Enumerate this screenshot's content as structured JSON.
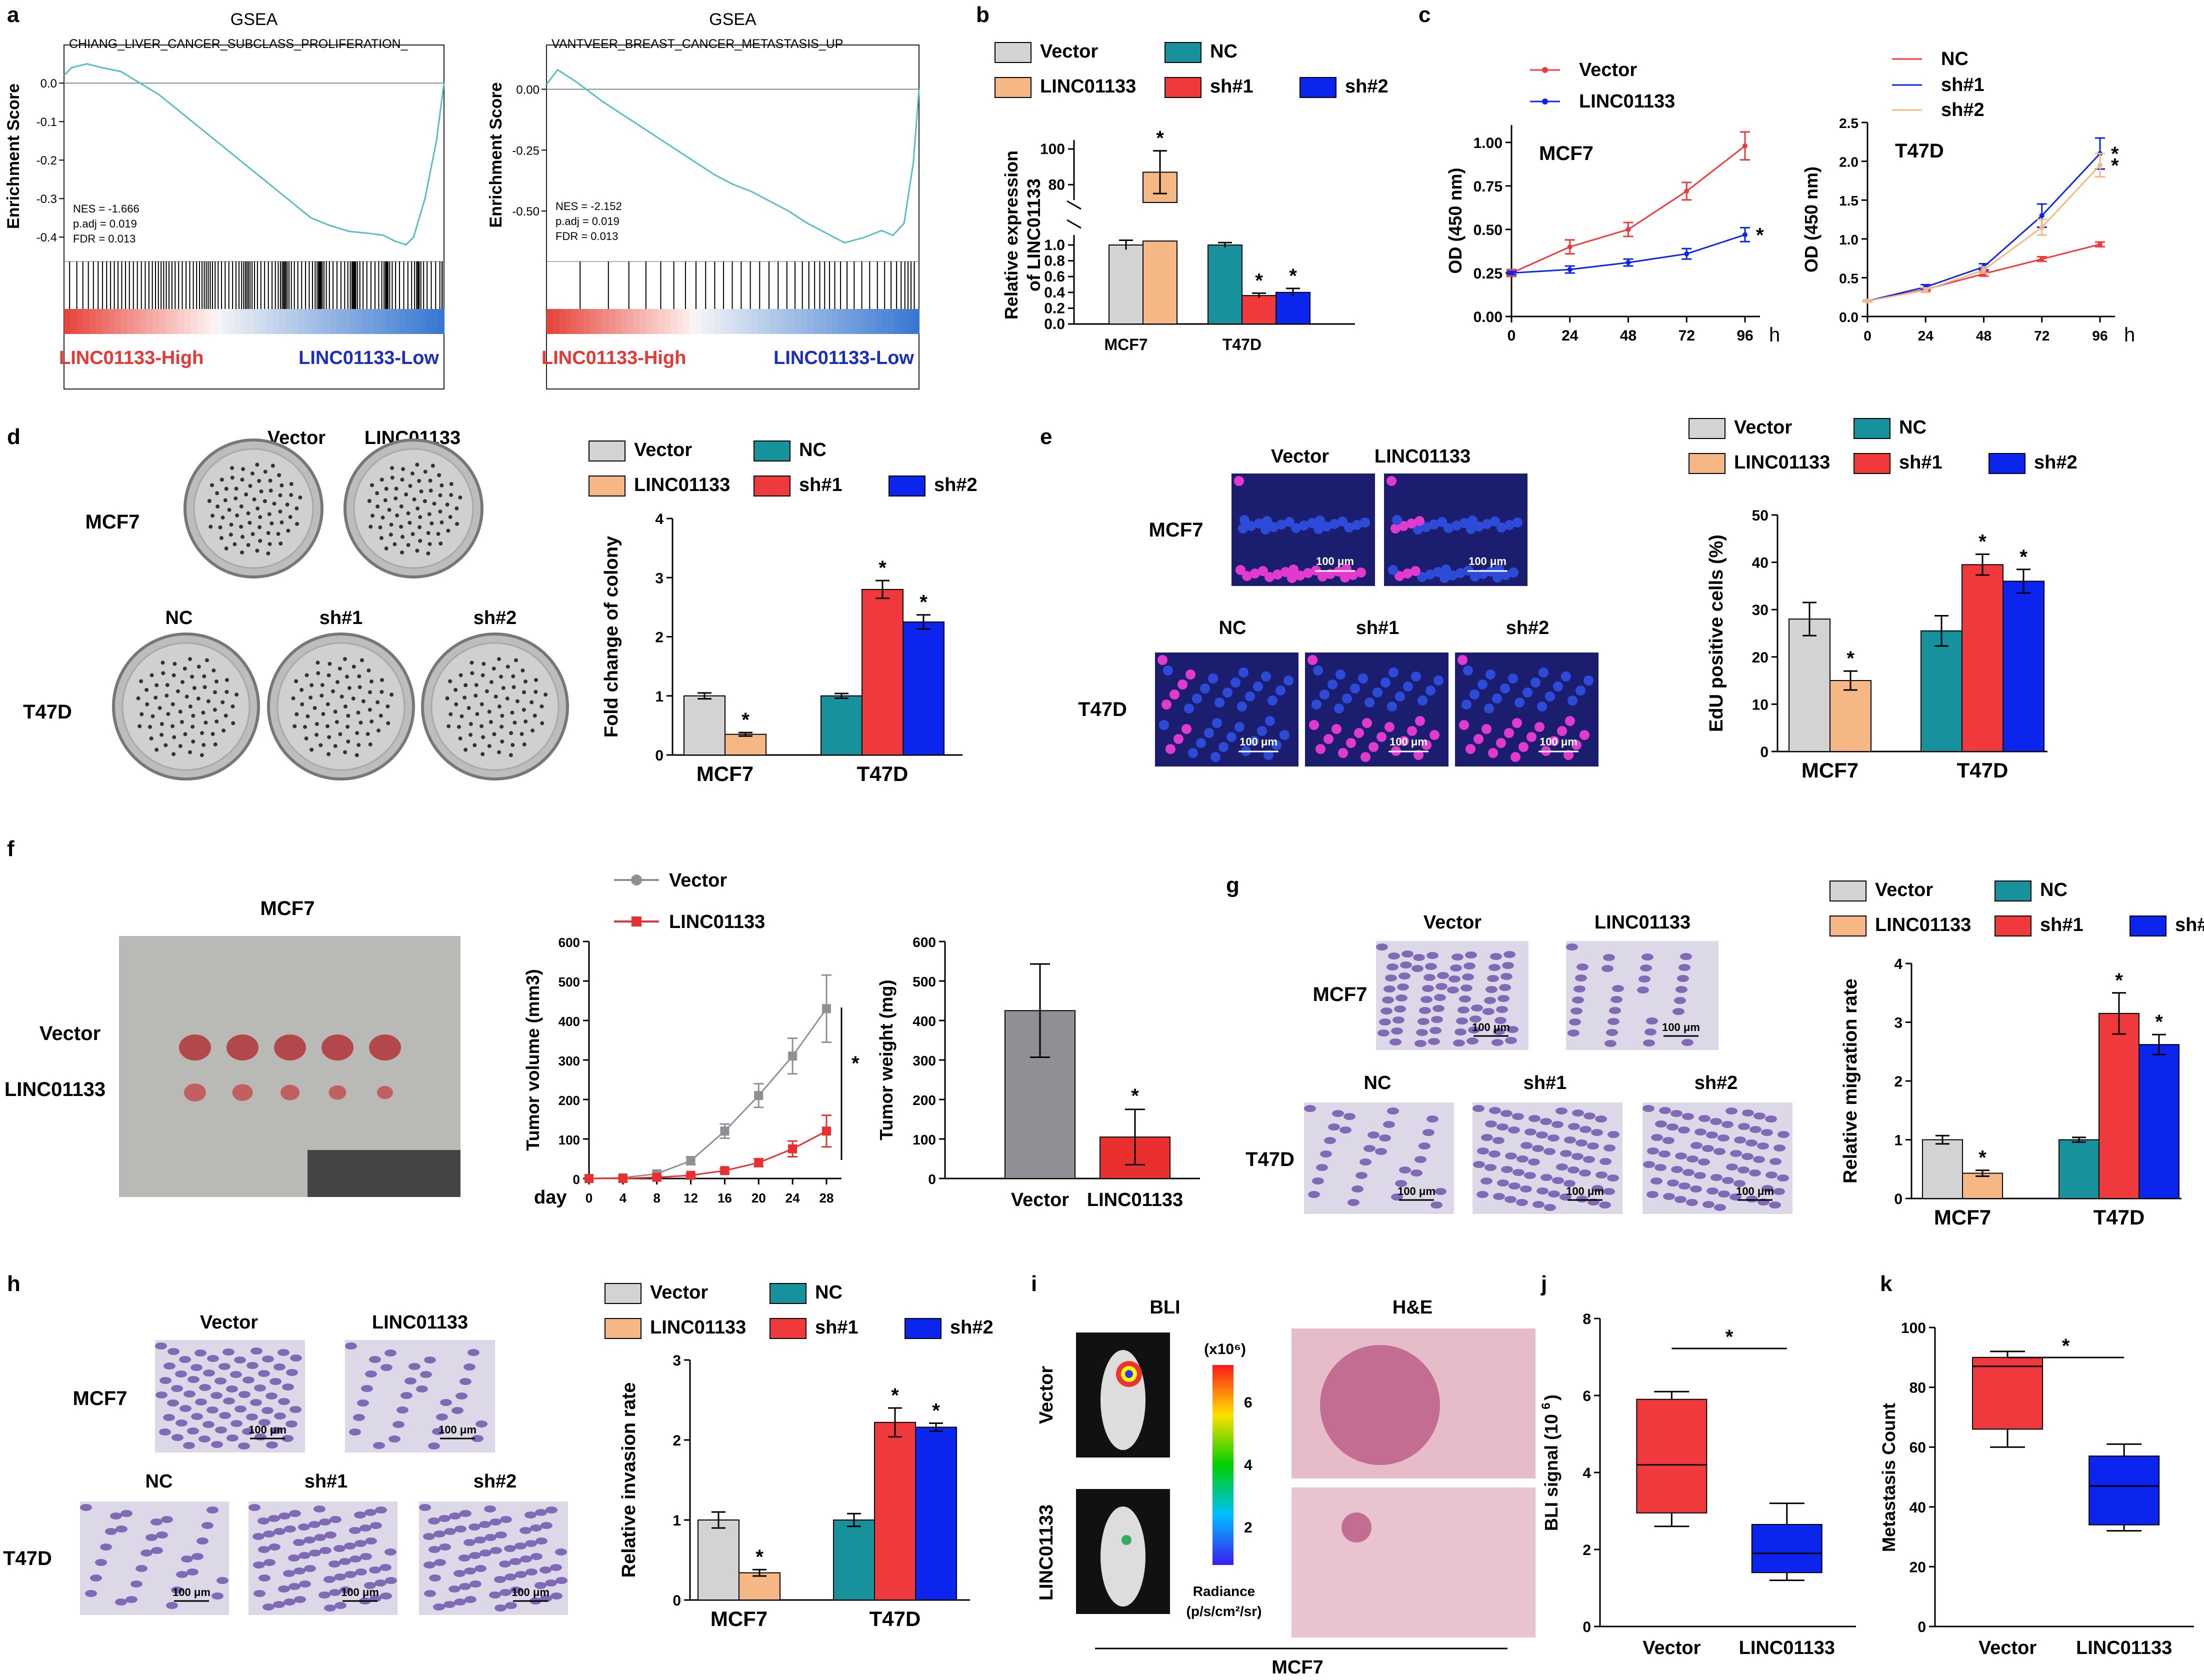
{
  "colors": {
    "gray": "#d3d3d3",
    "teal": "#17919c",
    "orange": "#f5b884",
    "red": "#f0393c",
    "blue": "#0b24ee",
    "gsea_line": "#56bfc6",
    "high_red": "#e53935",
    "low_blue": "#1a2fbf",
    "tumor_gray": "#8f8f95",
    "tumor_red": "#ea2f2f"
  },
  "legend_labels": {
    "vector": "Vector",
    "linc": "LINC01133",
    "nc": "NC",
    "sh1": "sh#1",
    "sh2": "sh#2"
  },
  "panels": {
    "a": "a",
    "b": "b",
    "c": "c",
    "d": "d",
    "e": "e",
    "f": "f",
    "g": "g",
    "h": "h",
    "i": "i",
    "j": "j",
    "k": "k"
  },
  "chart_data": [
    {
      "id": "a1",
      "type": "line",
      "title": "GSEA",
      "subtitle": "CHIANG_LIVER_CANCER_SUBCLASS_PROLIFERATION_",
      "ylabel": "Enrichment Score",
      "yticks": [
        "0.0",
        "-0.1",
        "-0.2",
        "-0.3",
        "-0.4"
      ],
      "ylim": [
        -0.44,
        0.06
      ],
      "curve": [
        [
          0,
          0.02
        ],
        [
          0.02,
          0.04
        ],
        [
          0.06,
          0.05
        ],
        [
          0.1,
          0.04
        ],
        [
          0.15,
          0.03
        ],
        [
          0.2,
          0.0
        ],
        [
          0.25,
          -0.03
        ],
        [
          0.3,
          -0.07
        ],
        [
          0.35,
          -0.11
        ],
        [
          0.4,
          -0.15
        ],
        [
          0.45,
          -0.19
        ],
        [
          0.5,
          -0.23
        ],
        [
          0.55,
          -0.27
        ],
        [
          0.6,
          -0.31
        ],
        [
          0.65,
          -0.35
        ],
        [
          0.7,
          -0.37
        ],
        [
          0.75,
          -0.385
        ],
        [
          0.8,
          -0.39
        ],
        [
          0.84,
          -0.395
        ],
        [
          0.87,
          -0.41
        ],
        [
          0.9,
          -0.42
        ],
        [
          0.92,
          -0.4
        ],
        [
          0.95,
          -0.3
        ],
        [
          0.98,
          -0.15
        ],
        [
          1.0,
          0.0
        ]
      ],
      "stats": [
        "NES = -1.666",
        "p.adj = 0.019",
        "FDR = 0.013"
      ],
      "high_label": "LINC01133-High",
      "low_label": "LINC01133-Low"
    },
    {
      "id": "a2",
      "type": "line",
      "title": "GSEA",
      "subtitle": "VANTVEER_BREAST_CANCER_METASTASIS_UP",
      "ylabel": "Enrichment Score",
      "yticks": [
        "0.00",
        "-0.25",
        "-0.50"
      ],
      "ylim": [
        -0.66,
        0.12
      ],
      "curve": [
        [
          0,
          0.02
        ],
        [
          0.03,
          0.08
        ],
        [
          0.08,
          0.03
        ],
        [
          0.15,
          -0.05
        ],
        [
          0.2,
          -0.1
        ],
        [
          0.25,
          -0.15
        ],
        [
          0.3,
          -0.2
        ],
        [
          0.35,
          -0.25
        ],
        [
          0.4,
          -0.3
        ],
        [
          0.45,
          -0.35
        ],
        [
          0.5,
          -0.39
        ],
        [
          0.55,
          -0.42
        ],
        [
          0.6,
          -0.46
        ],
        [
          0.65,
          -0.5
        ],
        [
          0.7,
          -0.55
        ],
        [
          0.75,
          -0.59
        ],
        [
          0.8,
          -0.63
        ],
        [
          0.85,
          -0.61
        ],
        [
          0.9,
          -0.58
        ],
        [
          0.93,
          -0.6
        ],
        [
          0.96,
          -0.55
        ],
        [
          0.985,
          -0.3
        ],
        [
          1.0,
          0.0
        ]
      ],
      "stats": [
        "NES = -2.152",
        "p.adj = 0.019",
        "FDR = 0.013"
      ],
      "high_label": "LINC01133-High",
      "low_label": "LINC01133-Low"
    },
    {
      "id": "b",
      "type": "bar",
      "ylabel": "Relative expression of LINC01133",
      "categories": [
        "MCF7",
        "T47D"
      ],
      "bars": [
        {
          "cat": "MCF7",
          "series": "Vector",
          "value": 1.0,
          "err": 0.06
        },
        {
          "cat": "MCF7",
          "series": "LINC01133",
          "value": 87,
          "err": 12,
          "star": true
        },
        {
          "cat": "T47D",
          "series": "NC",
          "value": 1.0,
          "err": 0.03
        },
        {
          "cat": "T47D",
          "series": "sh#1",
          "value": 0.36,
          "err": 0.03,
          "star": true
        },
        {
          "cat": "T47D",
          "series": "sh#2",
          "value": 0.4,
          "err": 0.05,
          "star": true
        }
      ],
      "yticks_low": [
        "0.0",
        "0.2",
        "0.4",
        "0.6",
        "0.8",
        "1.0"
      ],
      "yticks_high": [
        "80",
        "100"
      ]
    },
    {
      "id": "c1",
      "type": "line",
      "title": "MCF7",
      "ylabel": "OD (450 nm)",
      "x": [
        0,
        24,
        48,
        72,
        96
      ],
      "xunit": "h",
      "ylim": [
        0,
        1.1
      ],
      "yticks": [
        "0.00",
        "0.25",
        "0.50",
        "0.75",
        "1.00"
      ],
      "series": [
        {
          "name": "Vector",
          "values": [
            0.25,
            0.4,
            0.5,
            0.72,
            0.98
          ],
          "err": [
            0.02,
            0.04,
            0.04,
            0.05,
            0.08
          ]
        },
        {
          "name": "LINC01133",
          "values": [
            0.25,
            0.27,
            0.31,
            0.36,
            0.47
          ],
          "err": [
            0.01,
            0.02,
            0.02,
            0.03,
            0.04
          ],
          "star": true
        }
      ]
    },
    {
      "id": "c2",
      "type": "line",
      "title": "T47D",
      "ylabel": "OD (450 nm)",
      "x": [
        0,
        24,
        48,
        72,
        96
      ],
      "xunit": "h",
      "ylim": [
        0,
        2.5
      ],
      "yticks": [
        "0.0",
        "0.5",
        "1.0",
        "1.5",
        "2.0",
        "2.5"
      ],
      "series": [
        {
          "name": "NC",
          "values": [
            0.2,
            0.35,
            0.55,
            0.74,
            0.93
          ],
          "err": [
            0.01,
            0.02,
            0.03,
            0.03,
            0.03
          ]
        },
        {
          "name": "sh#1",
          "values": [
            0.2,
            0.38,
            0.64,
            1.3,
            2.1
          ],
          "err": [
            0.01,
            0.03,
            0.04,
            0.15,
            0.2
          ],
          "star": true
        },
        {
          "name": "sh#2",
          "values": [
            0.2,
            0.34,
            0.6,
            1.15,
            1.95
          ],
          "err": [
            0.01,
            0.03,
            0.04,
            0.1,
            0.15
          ],
          "star": true
        }
      ]
    },
    {
      "id": "d",
      "type": "bar",
      "ylabel": "Fold change of colony",
      "categories": [
        "MCF7",
        "T47D"
      ],
      "ylim": [
        0,
        4
      ],
      "yticks": [
        "0",
        "1",
        "2",
        "3",
        "4"
      ],
      "bars": [
        {
          "cat": "MCF7",
          "series": "Vector",
          "value": 1.0,
          "err": 0.05
        },
        {
          "cat": "MCF7",
          "series": "LINC01133",
          "value": 0.35,
          "err": 0.03,
          "star": true
        },
        {
          "cat": "T47D",
          "series": "NC",
          "value": 1.0,
          "err": 0.04
        },
        {
          "cat": "T47D",
          "series": "sh#1",
          "value": 2.8,
          "err": 0.15,
          "star": true
        },
        {
          "cat": "T47D",
          "series": "sh#2",
          "value": 2.25,
          "err": 0.12,
          "star": true
        }
      ]
    },
    {
      "id": "e",
      "type": "bar",
      "ylabel": "EdU positive cells (%)",
      "categories": [
        "MCF7",
        "T47D"
      ],
      "ylim": [
        0,
        50
      ],
      "yticks": [
        "0",
        "10",
        "20",
        "30",
        "40",
        "50"
      ],
      "bars": [
        {
          "cat": "MCF7",
          "series": "Vector",
          "value": 28,
          "err": 3.5
        },
        {
          "cat": "MCF7",
          "series": "LINC01133",
          "value": 15,
          "err": 2,
          "star": true
        },
        {
          "cat": "T47D",
          "series": "NC",
          "value": 25.5,
          "err": 3.2
        },
        {
          "cat": "T47D",
          "series": "sh#1",
          "value": 39.5,
          "err": 2.2,
          "star": true
        },
        {
          "cat": "T47D",
          "series": "sh#2",
          "value": 36,
          "err": 2.5,
          "star": true
        }
      ]
    },
    {
      "id": "f1",
      "type": "line",
      "ylabel": "Tumor volume (mm3)",
      "xlabel": "day",
      "x": [
        0,
        4,
        8,
        12,
        16,
        20,
        24,
        28
      ],
      "ylim": [
        0,
        600
      ],
      "yticks": [
        "0",
        "100",
        "200",
        "300",
        "400",
        "500",
        "600"
      ],
      "series": [
        {
          "name": "Vector",
          "values": [
            0,
            2,
            12,
            45,
            120,
            210,
            310,
            430
          ],
          "err": [
            0,
            1,
            5,
            10,
            18,
            30,
            45,
            85
          ]
        },
        {
          "name": "LINC01133",
          "values": [
            0,
            0,
            3,
            8,
            20,
            40,
            75,
            120
          ],
          "err": [
            0,
            0,
            2,
            3,
            5,
            10,
            20,
            40
          ]
        }
      ]
    },
    {
      "id": "f2",
      "type": "bar",
      "ylabel": "Tumor weight (mg)",
      "categories": [
        "Vector",
        "LINC01133"
      ],
      "ylim": [
        0,
        600
      ],
      "yticks": [
        "0",
        "100",
        "200",
        "300",
        "400",
        "500",
        "600"
      ],
      "bars": [
        {
          "cat": "Vector",
          "series": "Vector",
          "value": 425,
          "err": 118
        },
        {
          "cat": "LINC01133",
          "series": "LINC01133",
          "value": 105,
          "err": 70,
          "star": true
        }
      ]
    },
    {
      "id": "g",
      "type": "bar",
      "ylabel": "Relative migration rate",
      "categories": [
        "MCF7",
        "T47D"
      ],
      "ylim": [
        0,
        4
      ],
      "yticks": [
        "0",
        "1",
        "2",
        "3",
        "4"
      ],
      "bars": [
        {
          "cat": "MCF7",
          "series": "Vector",
          "value": 1.0,
          "err": 0.07
        },
        {
          "cat": "MCF7",
          "series": "LINC01133",
          "value": 0.43,
          "err": 0.05,
          "star": true
        },
        {
          "cat": "T47D",
          "series": "NC",
          "value": 1.0,
          "err": 0.04
        },
        {
          "cat": "T47D",
          "series": "sh#1",
          "value": 3.15,
          "err": 0.35,
          "star": true
        },
        {
          "cat": "T47D",
          "series": "sh#2",
          "value": 2.62,
          "err": 0.17,
          "star": true
        }
      ]
    },
    {
      "id": "h",
      "type": "bar",
      "ylabel": "Relative invasion rate",
      "categories": [
        "MCF7",
        "T47D"
      ],
      "ylim": [
        0,
        3
      ],
      "yticks": [
        "0",
        "1",
        "2",
        "3"
      ],
      "bars": [
        {
          "cat": "MCF7",
          "series": "Vector",
          "value": 1.0,
          "err": 0.1
        },
        {
          "cat": "MCF7",
          "series": "LINC01133",
          "value": 0.34,
          "err": 0.04,
          "star": true
        },
        {
          "cat": "T47D",
          "series": "NC",
          "value": 1.0,
          "err": 0.08
        },
        {
          "cat": "T47D",
          "series": "sh#1",
          "value": 2.22,
          "err": 0.18,
          "star": true
        },
        {
          "cat": "T47D",
          "series": "sh#2",
          "value": 2.16,
          "err": 0.05,
          "star": true
        }
      ]
    },
    {
      "id": "j",
      "type": "box",
      "ylabel": "BLI signal (10^6)",
      "categories": [
        "Vector",
        "LINC01133"
      ],
      "ylim": [
        0,
        8
      ],
      "yticks": [
        "0",
        "2",
        "4",
        "6",
        "8"
      ],
      "boxes": [
        {
          "name": "Vector",
          "min": 2.6,
          "q1": 2.95,
          "median": 4.2,
          "q3": 5.9,
          "max": 6.1
        },
        {
          "name": "LINC01133",
          "min": 1.2,
          "q1": 1.4,
          "median": 1.9,
          "q3": 2.65,
          "max": 3.2
        }
      ]
    },
    {
      "id": "k",
      "type": "box",
      "ylabel": "Metastasis Count",
      "categories": [
        "Vector",
        "LINC01133"
      ],
      "ylim": [
        0,
        100
      ],
      "yticks": [
        "0",
        "20",
        "40",
        "60",
        "80",
        "100"
      ],
      "boxes": [
        {
          "name": "Vector",
          "min": 60,
          "q1": 66,
          "median": 87,
          "q3": 90,
          "max": 92
        },
        {
          "name": "LINC01133",
          "min": 32,
          "q1": 34,
          "median": 47,
          "q3": 57,
          "max": 61
        }
      ]
    }
  ],
  "text": {
    "b_axis_labels": [
      "MCF7",
      "T47D"
    ],
    "d_images": {
      "top": [
        "Vector",
        "LINC01133"
      ],
      "bottom": [
        "NC",
        "sh#1",
        "sh#2"
      ],
      "rows": [
        "MCF7",
        "T47D"
      ]
    },
    "e_images": {
      "top": [
        "Vector",
        "LINC01133"
      ],
      "bottom": [
        "NC",
        "sh#1",
        "sh#2"
      ],
      "rows": [
        "MCF7",
        "T47D"
      ],
      "scale": "100 μm"
    },
    "f_title": "MCF7",
    "f_rows": [
      "Vector",
      "LINC01133"
    ],
    "g_images": {
      "top": [
        "Vector",
        "LINC01133"
      ],
      "bottom": [
        "NC",
        "sh#1",
        "sh#2"
      ],
      "rows": [
        "MCF7",
        "T47D"
      ],
      "scale": "100 μm"
    },
    "h_images": {
      "top": [
        "Vector",
        "LINC01133"
      ],
      "bottom": [
        "NC",
        "sh#1",
        "sh#2"
      ],
      "rows": [
        "MCF7",
        "T47D"
      ],
      "scale": "100 μm"
    },
    "i": {
      "bli": "BLI",
      "he": "H&E",
      "unit": "(x10⁶)",
      "radiance1": "Radiance",
      "radiance2": "(p/s/cm²/sr)",
      "rows": [
        "Vector",
        "LINC01133"
      ],
      "footer": "MCF7",
      "ticks": [
        "6",
        "4",
        "2"
      ]
    }
  }
}
